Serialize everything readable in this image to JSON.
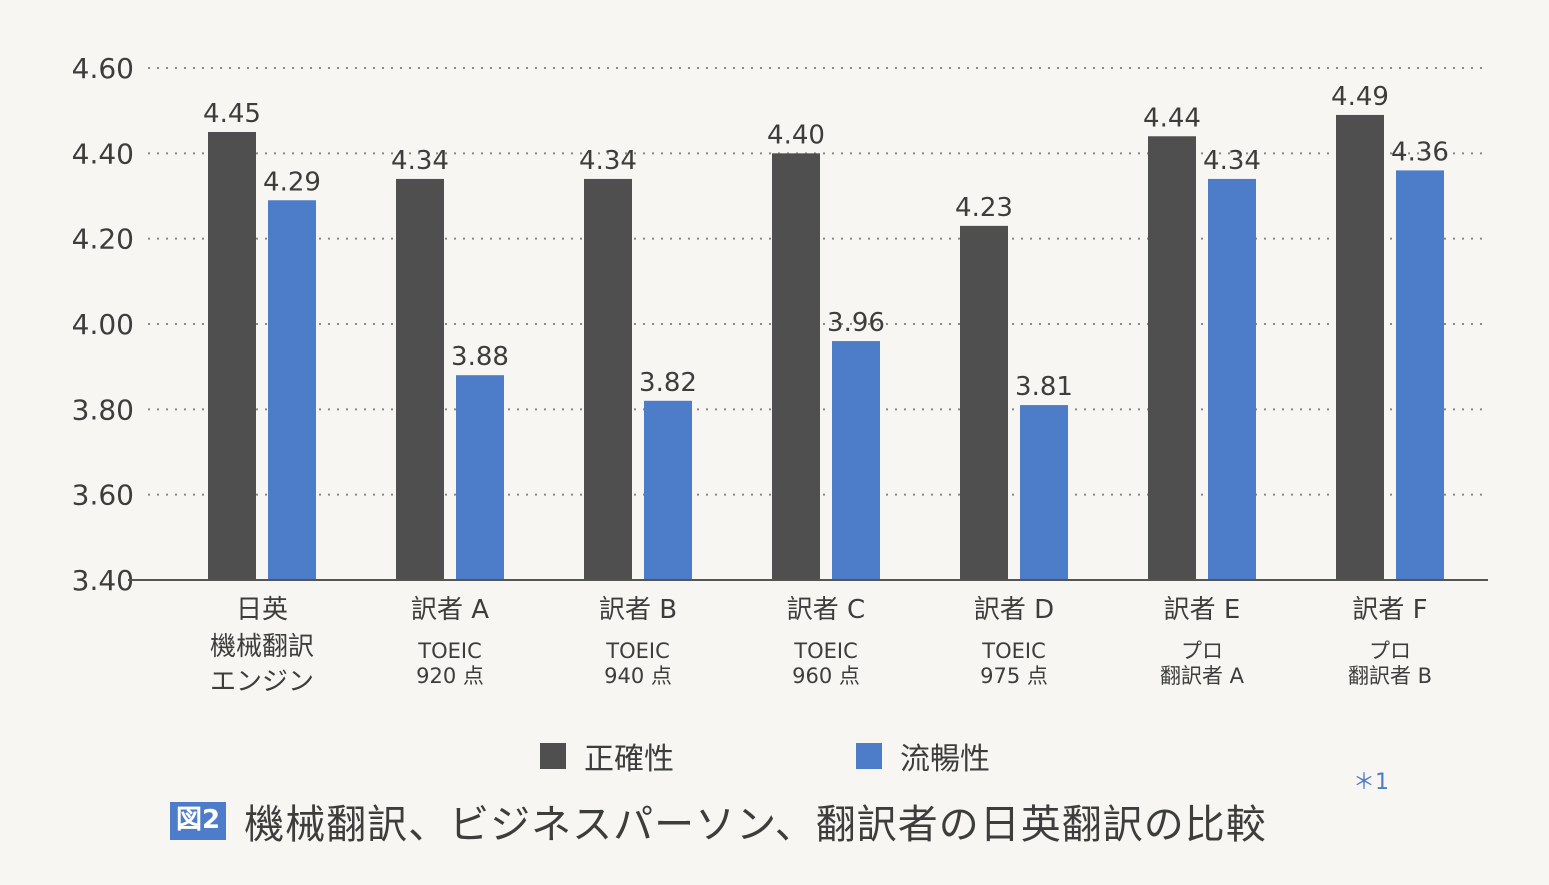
{
  "chart_data": {
    "type": "bar",
    "ylim": [
      3.4,
      4.6
    ],
    "yticks": [
      "4.60",
      "4.40",
      "4.20",
      "4.00",
      "3.80",
      "3.60",
      "3.40"
    ],
    "grid": "horizontal-dotted",
    "categories": [
      {
        "name": "日英",
        "sub": [
          "機械翻訳",
          "エンジン"
        ]
      },
      {
        "name": "訳者 A",
        "sub": [
          "TOEIC",
          "920 点"
        ]
      },
      {
        "name": "訳者 B",
        "sub": [
          "TOEIC",
          "940 点"
        ]
      },
      {
        "name": "訳者 C",
        "sub": [
          "TOEIC",
          "960 点"
        ]
      },
      {
        "name": "訳者 D",
        "sub": [
          "TOEIC",
          "975 点"
        ]
      },
      {
        "name": "訳者 E",
        "sub": [
          "プロ",
          "翻訳者 A"
        ]
      },
      {
        "name": "訳者 F",
        "sub": [
          "プロ",
          "翻訳者 B"
        ]
      }
    ],
    "series": [
      {
        "name": "正確性",
        "color": "#4f4f4f",
        "values": [
          4.45,
          4.34,
          4.34,
          4.4,
          4.23,
          4.44,
          4.49
        ]
      },
      {
        "name": "流暢性",
        "color": "#4d7cc8",
        "values": [
          4.29,
          3.88,
          3.82,
          3.96,
          3.81,
          4.34,
          4.36
        ]
      }
    ],
    "value_labels": [
      [
        "4.45",
        "4.34",
        "4.34",
        "4.40",
        "4.23",
        "4.44",
        "4.49"
      ],
      [
        "4.29",
        "3.88",
        "3.82",
        "3.96",
        "3.81",
        "4.34",
        "4.36"
      ]
    ]
  },
  "legend": {
    "items": [
      {
        "label": "正確性",
        "color": "#4f4f4f"
      },
      {
        "label": "流暢性",
        "color": "#4d7cc8"
      }
    ]
  },
  "caption": {
    "badge": "図2",
    "title": "機械翻訳、ビジネスパーソン、翻訳者の日英翻訳の比較",
    "footnote": "＊1"
  }
}
